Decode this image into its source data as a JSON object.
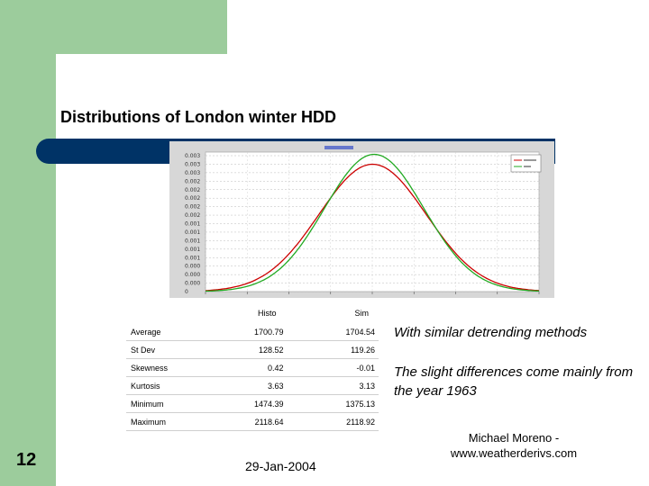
{
  "slide": {
    "title": "Distributions of London winter HDD",
    "number": "12",
    "date": "29-Jan-2004",
    "author_line1": "Michael Moreno -",
    "author_line2": "www.weatherderivs.com"
  },
  "notes": {
    "note1": "With similar detrending methods",
    "note2": "The slight differences come mainly from the year 1963"
  },
  "colors": {
    "background_green": "#9ccc9c",
    "accent_navy": "#003366",
    "histo_line": "#cc0000",
    "sim_line": "#22aa22"
  },
  "table": {
    "headers": [
      "",
      "Histo",
      "Sim"
    ],
    "rows": [
      {
        "label": "Average",
        "histo": "1700.79",
        "sim": "1704.54"
      },
      {
        "label": "St Dev",
        "histo": "128.52",
        "sim": "119.26"
      },
      {
        "label": "Skewness",
        "histo": "0.42",
        "sim": "-0.01"
      },
      {
        "label": "Kurtosis",
        "histo": "3.63",
        "sim": "3.13"
      },
      {
        "label": "Minimum",
        "histo": "1474.39",
        "sim": "1375.13"
      },
      {
        "label": "Maximum",
        "histo": "2118.64",
        "sim": "2118.92"
      }
    ]
  },
  "chart_data": {
    "type": "line",
    "ytick_labels": [
      "0.003",
      "0.003",
      "0.003",
      "0.002",
      "0.002",
      "0.002",
      "0.002",
      "0.002",
      "0.001",
      "0.001",
      "0.001",
      "0.001",
      "0.001",
      "0.000",
      "0.000",
      "0.000",
      "0"
    ],
    "x_domain": [
      1300,
      2100
    ],
    "y_domain": [
      0,
      0.0034
    ],
    "grid": true,
    "legend_position": "top-right",
    "series": [
      {
        "key": "histo",
        "color": "#cc0000",
        "mean": 1700.79,
        "sd": 128.52
      },
      {
        "key": "sim",
        "color": "#22aa22",
        "mean": 1704.54,
        "sd": 119.26
      }
    ]
  }
}
